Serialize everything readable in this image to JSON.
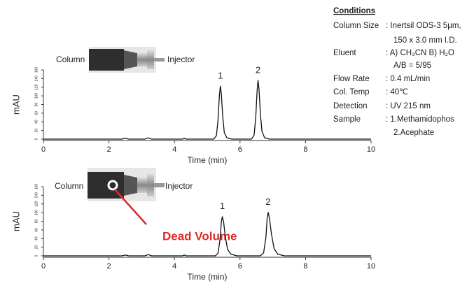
{
  "chart_data": [
    {
      "type": "line",
      "x_label": "Time (min)",
      "y_label": "mAU",
      "color": "#111",
      "xlim": [
        0,
        10
      ],
      "xticks": [
        0,
        2,
        4,
        6,
        8,
        10
      ],
      "ylim": [
        0,
        160
      ],
      "yticks": [
        0,
        20,
        40,
        60,
        80,
        100,
        120,
        140,
        160
      ],
      "x": [
        0,
        2.4,
        2.5,
        2.6,
        3.1,
        3.2,
        3.3,
        4.25,
        4.3,
        4.35,
        5.2,
        5.28,
        5.33,
        5.37,
        5.4,
        5.43,
        5.47,
        5.52,
        5.6,
        5.75,
        6.35,
        6.43,
        6.48,
        6.52,
        6.55,
        6.58,
        6.62,
        6.67,
        6.75,
        6.9,
        10
      ],
      "values": [
        0,
        0,
        2,
        0,
        0,
        3,
        0,
        0,
        2,
        0,
        0,
        8,
        45,
        100,
        123,
        105,
        55,
        15,
        3,
        0,
        0,
        9,
        50,
        110,
        136,
        115,
        60,
        18,
        3,
        0,
        0
      ],
      "annotations": [
        {
          "text": "1",
          "x": 5.4,
          "y": 123
        },
        {
          "text": "2",
          "x": 6.55,
          "y": 136
        }
      ]
    },
    {
      "type": "line",
      "x_label": "Time (min)",
      "y_label": "mAU",
      "color": "#111",
      "xlim": [
        0,
        10
      ],
      "xticks": [
        0,
        2,
        4,
        6,
        8,
        10
      ],
      "ylim": [
        0,
        160
      ],
      "yticks": [
        0,
        20,
        40,
        60,
        80,
        100,
        120,
        140,
        160
      ],
      "x": [
        0,
        2.4,
        2.5,
        2.6,
        3.1,
        3.2,
        3.3,
        4.25,
        4.3,
        4.35,
        5.25,
        5.33,
        5.39,
        5.43,
        5.46,
        5.5,
        5.55,
        5.62,
        5.72,
        5.9,
        6.62,
        6.72,
        6.79,
        6.83,
        6.86,
        6.9,
        6.96,
        7.04,
        7.15,
        7.35,
        10
      ],
      "values": [
        0,
        0,
        2,
        0,
        0,
        3,
        0,
        0,
        2,
        0,
        0,
        6,
        38,
        78,
        91,
        78,
        45,
        15,
        4,
        0,
        0,
        7,
        42,
        88,
        101,
        86,
        50,
        17,
        4,
        0,
        0
      ],
      "annotations": [
        {
          "text": "1",
          "x": 5.46,
          "y": 91
        },
        {
          "text": "2",
          "x": 6.86,
          "y": 101
        }
      ]
    }
  ],
  "insets": [
    {
      "left_label": "Column",
      "right_label": "Injector"
    },
    {
      "left_label": "Column",
      "right_label": "Injector",
      "callout": "Dead Volume"
    }
  ],
  "conditions": {
    "title": "Conditions",
    "rows": [
      {
        "label": "Column Size",
        "lines": [
          ": Inertsil ODS-3 5μm,",
          "150 x 3.0 mm I.D."
        ]
      },
      {
        "label": "Eluent",
        "lines": [
          ": A) CH₃CN  B) H₂O",
          "A/B = 5/95"
        ]
      },
      {
        "label": "Flow Rate",
        "lines": [
          ": 0.4 mL/min"
        ]
      },
      {
        "label": "Col. Temp",
        "lines": [
          ": 40℃"
        ]
      },
      {
        "label": "Detection",
        "lines": [
          ": UV 215 nm"
        ]
      },
      {
        "label": "Sample",
        "lines": [
          ": 1.Methamidophos",
          "2.Acephate"
        ]
      }
    ]
  }
}
